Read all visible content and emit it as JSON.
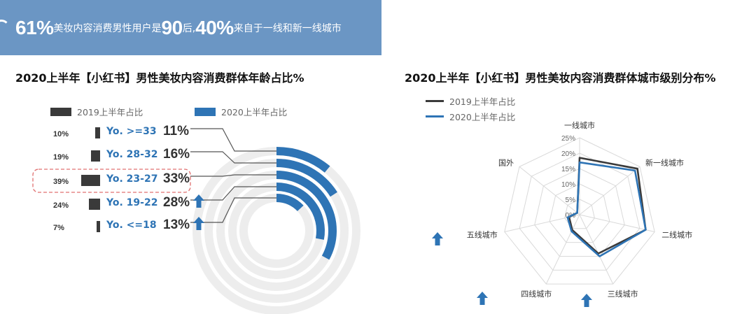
{
  "banner": {
    "p1": "61%",
    "t1": "美妆内容消费男性用户是",
    "p2": "90",
    "t2": "后, ",
    "p3": "40%",
    "t3": "来自于一线和新一线城市"
  },
  "colors": {
    "dark": "#3a3a3a",
    "blue": "#2e74b5",
    "ring_bg": "#ededed",
    "banner": "#6b96c4"
  },
  "chart_data": [
    {
      "type": "bar",
      "title": "2020上半年【小红书】男性美妆内容消费群体年龄占比%",
      "legend": [
        "2019上半年占比",
        "2020上半年占比"
      ],
      "categories": [
        "Yo. >=33",
        "Yo. 28-32",
        "Yo. 23-27",
        "Yo. 19-22",
        "Yo. <=18"
      ],
      "series": [
        {
          "name": "2019上半年占比",
          "values": [
            10,
            19,
            39,
            24,
            7
          ],
          "labels": [
            "10%",
            "19%",
            "39%",
            "24%",
            "7%"
          ]
        },
        {
          "name": "2020上半年占比",
          "values": [
            11,
            16,
            33,
            28,
            13
          ],
          "labels": [
            "11%",
            "16%",
            "33%",
            "28%",
            "13%"
          ]
        }
      ],
      "highlight": "Yo. 23-27",
      "up_arrows": [
        "Yo. 19-22",
        "Yo. <=18"
      ]
    },
    {
      "type": "radar",
      "title": "2020上半年【小红书】男性美妆内容消费群体城市级别分布%",
      "legend": [
        "2019上半年占比",
        "2020上半年占比"
      ],
      "axes": [
        "一线城市",
        "新一线城市",
        "二线城市",
        "三线城市",
        "四线城市",
        "五线城市",
        "国外"
      ],
      "ticks": [
        "0%",
        "5%",
        "10%",
        "15%",
        "20%",
        "25%"
      ],
      "rmax": 25,
      "series": [
        {
          "name": "2019上半年占比",
          "values": [
            18.5,
            24,
            22,
            14,
            5.5,
            3.5,
            1
          ]
        },
        {
          "name": "2020上半年占比",
          "values": [
            17,
            23,
            22,
            15,
            6,
            4,
            1
          ]
        }
      ],
      "up_arrows": [
        "三线城市",
        "四线城市",
        "五线城市"
      ]
    }
  ]
}
